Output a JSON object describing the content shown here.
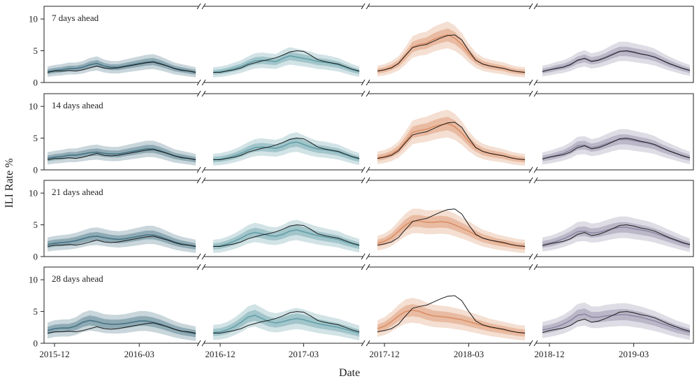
{
  "chart_data": {
    "type": "area",
    "xlabel": "Date",
    "ylabel": "ILI Rate %",
    "ylim": [
      0,
      12
    ],
    "yticks": [
      0,
      5,
      10
    ],
    "grid": false,
    "rows": [
      "7 days ahead",
      "14 days ahead",
      "21 days ahead",
      "28 days ahead"
    ],
    "seasons": [
      {
        "start": "2015-12",
        "tick_labels": [
          "2015-12",
          "2016-03"
        ],
        "tick_weeks": [
          0,
          13
        ],
        "color": "#3e6d7e",
        "weeks": 26,
        "observed": [
          1.6,
          1.8,
          1.8,
          1.9,
          1.8,
          2.0,
          2.3,
          2.6,
          2.3,
          2.2,
          2.3,
          2.5,
          2.7,
          2.9,
          3.1,
          3.2,
          2.9,
          2.6,
          2.2,
          1.9,
          1.8,
          1.6
        ]
      },
      {
        "start": "2016-12",
        "tick_labels": [
          "2016-12",
          "2017-03"
        ],
        "tick_weeks": [
          0,
          13
        ],
        "color": "#5d9aa5",
        "weeks": 26,
        "observed": [
          1.6,
          1.6,
          1.8,
          2.0,
          2.3,
          2.8,
          3.1,
          3.4,
          3.6,
          3.9,
          4.3,
          4.8,
          5.0,
          4.9,
          4.3,
          3.6,
          3.3,
          3.1,
          2.9,
          2.5,
          2.1,
          1.8
        ]
      },
      {
        "start": "2017-12",
        "tick_labels": [
          "2017-12",
          "2018-03"
        ],
        "tick_weeks": [
          0,
          13
        ],
        "color": "#d98b5f",
        "weeks": 26,
        "observed": [
          1.8,
          2.0,
          2.3,
          3.0,
          4.3,
          5.5,
          5.8,
          6.0,
          6.5,
          7.0,
          7.4,
          7.5,
          6.7,
          5.0,
          3.5,
          2.9,
          2.6,
          2.4,
          2.2,
          1.9,
          1.7,
          1.6
        ]
      },
      {
        "start": "2018-12",
        "tick_labels": [
          "2018-12",
          "2019-03"
        ],
        "tick_weeks": [
          0,
          13
        ],
        "color": "#8a84a0",
        "weeks": 26,
        "observed": [
          1.7,
          2.0,
          2.2,
          2.4,
          2.8,
          3.5,
          3.8,
          3.3,
          3.5,
          3.9,
          4.4,
          4.9,
          5.0,
          4.8,
          4.5,
          4.3,
          4.0,
          3.5,
          3.0,
          2.6,
          2.2,
          1.9
        ]
      }
    ],
    "forecast_medians": [
      [
        [
          1.7,
          1.9,
          2.0,
          2.2,
          2.2,
          2.4,
          2.8,
          3.0,
          2.6,
          2.4,
          2.4,
          2.6,
          2.8,
          3.0,
          3.2,
          3.3,
          3.0,
          2.6,
          2.2,
          2.0,
          1.8,
          1.6
        ],
        [
          1.6,
          1.7,
          1.9,
          2.2,
          2.5,
          3.0,
          3.4,
          3.5,
          3.4,
          3.3,
          3.8,
          4.2,
          4.0,
          3.8,
          3.6,
          3.3,
          3.2,
          3.0,
          2.8,
          2.4,
          2.0,
          1.7
        ],
        [
          1.8,
          2.0,
          2.4,
          3.0,
          4.2,
          5.6,
          6.0,
          6.2,
          6.8,
          7.2,
          7.5,
          7.0,
          6.0,
          4.6,
          3.5,
          2.9,
          2.6,
          2.4,
          2.2,
          1.9,
          1.7,
          1.6
        ],
        [
          1.8,
          2.0,
          2.3,
          2.5,
          2.9,
          3.5,
          3.8,
          3.4,
          3.6,
          4.0,
          4.5,
          4.9,
          4.9,
          4.7,
          4.5,
          4.3,
          4.0,
          3.5,
          3.0,
          2.6,
          2.2,
          1.9
        ]
      ],
      [
        [
          1.8,
          2.0,
          2.1,
          2.3,
          2.3,
          2.5,
          2.7,
          2.8,
          2.6,
          2.5,
          2.5,
          2.7,
          2.9,
          3.1,
          3.3,
          3.3,
          3.0,
          2.6,
          2.2,
          2.0,
          1.8,
          1.6
        ],
        [
          1.6,
          1.7,
          1.9,
          2.2,
          2.6,
          3.1,
          3.5,
          3.6,
          3.5,
          3.4,
          3.7,
          4.2,
          4.4,
          4.0,
          3.6,
          3.3,
          3.2,
          3.0,
          2.8,
          2.4,
          2.0,
          1.7
        ],
        [
          1.9,
          2.1,
          2.5,
          3.2,
          4.5,
          5.9,
          6.2,
          6.4,
          6.8,
          7.1,
          7.3,
          6.8,
          5.8,
          4.5,
          3.5,
          2.9,
          2.6,
          2.4,
          2.2,
          1.9,
          1.7,
          1.6
        ],
        [
          1.8,
          2.0,
          2.3,
          2.6,
          3.1,
          3.8,
          3.9,
          3.5,
          3.7,
          4.1,
          4.5,
          4.8,
          4.8,
          4.6,
          4.4,
          4.2,
          3.9,
          3.4,
          3.0,
          2.6,
          2.2,
          1.9
        ]
      ],
      [
        [
          1.9,
          2.1,
          2.2,
          2.3,
          2.5,
          2.8,
          3.1,
          3.2,
          3.0,
          2.8,
          2.7,
          2.8,
          3.0,
          3.2,
          3.4,
          3.4,
          3.1,
          2.7,
          2.3,
          2.0,
          1.8,
          1.6
        ],
        [
          1.6,
          1.7,
          2.0,
          2.4,
          2.9,
          3.5,
          3.8,
          3.6,
          3.3,
          3.2,
          3.5,
          4.0,
          4.2,
          3.9,
          3.6,
          3.3,
          3.1,
          2.9,
          2.7,
          2.3,
          2.0,
          1.7
        ],
        [
          2.1,
          2.4,
          3.0,
          4.0,
          5.0,
          5.6,
          5.6,
          5.4,
          5.4,
          5.5,
          5.4,
          5.0,
          4.5,
          4.0,
          3.4,
          2.9,
          2.6,
          2.3,
          2.1,
          1.9,
          1.7,
          1.6
        ],
        [
          1.9,
          2.1,
          2.4,
          2.8,
          3.3,
          3.9,
          4.0,
          3.7,
          3.8,
          4.1,
          4.4,
          4.6,
          4.6,
          4.4,
          4.2,
          4.0,
          3.7,
          3.3,
          2.9,
          2.5,
          2.1,
          1.8
        ]
      ],
      [
        [
          2.0,
          2.3,
          2.4,
          2.4,
          2.7,
          3.3,
          3.6,
          3.4,
          3.1,
          3.0,
          3.0,
          3.1,
          3.3,
          3.5,
          3.5,
          3.3,
          3.0,
          2.6,
          2.2,
          1.9,
          1.7,
          1.5
        ],
        [
          1.7,
          1.8,
          2.1,
          2.6,
          3.3,
          4.1,
          4.4,
          3.9,
          3.4,
          3.2,
          3.4,
          3.7,
          3.9,
          3.7,
          3.4,
          3.1,
          2.9,
          2.7,
          2.5,
          2.2,
          1.9,
          1.6
        ],
        [
          2.3,
          2.7,
          3.4,
          4.3,
          5.0,
          5.2,
          5.0,
          4.6,
          4.3,
          4.2,
          4.1,
          3.9,
          3.7,
          3.4,
          3.1,
          2.8,
          2.5,
          2.3,
          2.1,
          1.9,
          1.7,
          1.6
        ],
        [
          2.1,
          2.3,
          2.6,
          3.0,
          3.6,
          4.4,
          4.6,
          4.1,
          4.1,
          4.3,
          4.4,
          4.5,
          4.5,
          4.3,
          4.1,
          3.8,
          3.5,
          3.1,
          2.7,
          2.3,
          2.0,
          1.7
        ]
      ]
    ]
  }
}
